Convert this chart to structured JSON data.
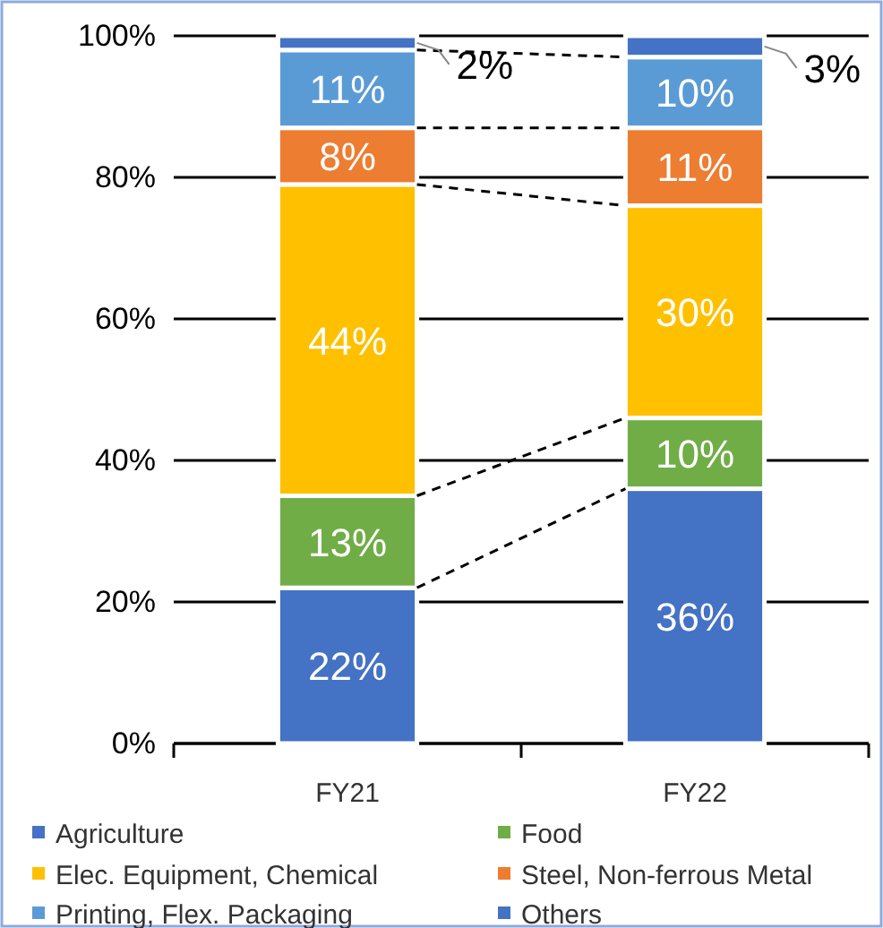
{
  "chart_data": {
    "type": "bar",
    "stacked": true,
    "categories": [
      "FY21",
      "FY22"
    ],
    "series": [
      {
        "name": "Agriculture",
        "color": "#4472c4",
        "values": [
          22,
          36
        ],
        "value_labels": [
          "22%",
          "36%"
        ]
      },
      {
        "name": "Food",
        "color": "#70ad47",
        "values": [
          13,
          10
        ],
        "value_labels": [
          "13%",
          "10%"
        ]
      },
      {
        "name": "Elec. Equipment, Chemical",
        "color": "#ffc000",
        "values": [
          44,
          30
        ],
        "value_labels": [
          "44%",
          "30%"
        ]
      },
      {
        "name": "Steel, Non-ferrous Metal",
        "color": "#ed7d31",
        "values": [
          8,
          11
        ],
        "value_labels": [
          "8%",
          "11%"
        ]
      },
      {
        "name": "Printing, Flex. Packaging",
        "color": "#5b9bd5",
        "values": [
          11,
          10
        ],
        "value_labels": [
          "11%",
          "10%"
        ]
      },
      {
        "name": "Others",
        "color": "#4472c4",
        "values": [
          2,
          3
        ],
        "value_labels": [
          "2%",
          "3%"
        ]
      }
    ],
    "ylim": [
      0,
      100
    ],
    "yticks": [
      {
        "value": 0,
        "label": "0%"
      },
      {
        "value": 20,
        "label": "20%"
      },
      {
        "value": 40,
        "label": "40%"
      },
      {
        "value": 60,
        "label": "60%"
      },
      {
        "value": 80,
        "label": "80%"
      },
      {
        "value": 100,
        "label": "100%"
      }
    ],
    "grid": "y",
    "legend": "bottom"
  }
}
